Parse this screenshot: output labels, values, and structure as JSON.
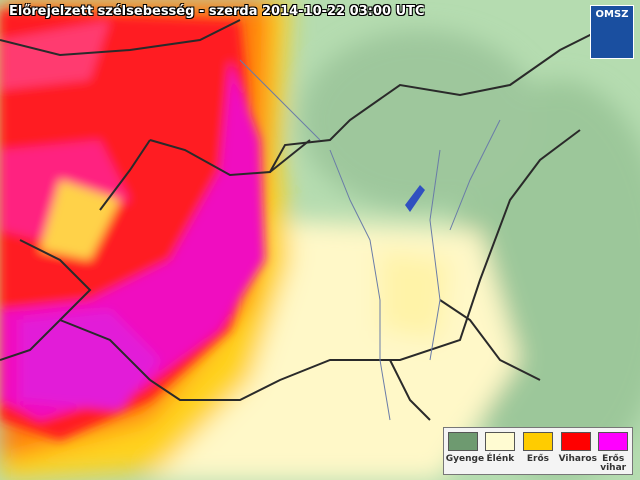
{
  "header": {
    "title": "Előrejelzett szélsebesség - szerda 2014-10-22 03:00 UTC",
    "logo": "OMSZ"
  },
  "legend": {
    "items": [
      {
        "label": "Gyenge",
        "color": "#6e9a70"
      },
      {
        "label": "Élénk",
        "color": "#fffbd2"
      },
      {
        "label": "Erős",
        "color": "#ffcc00"
      },
      {
        "label": "Viharos",
        "color": "#ff0000"
      },
      {
        "label": "Erős vihar",
        "color": "#ff00ff"
      }
    ]
  }
}
